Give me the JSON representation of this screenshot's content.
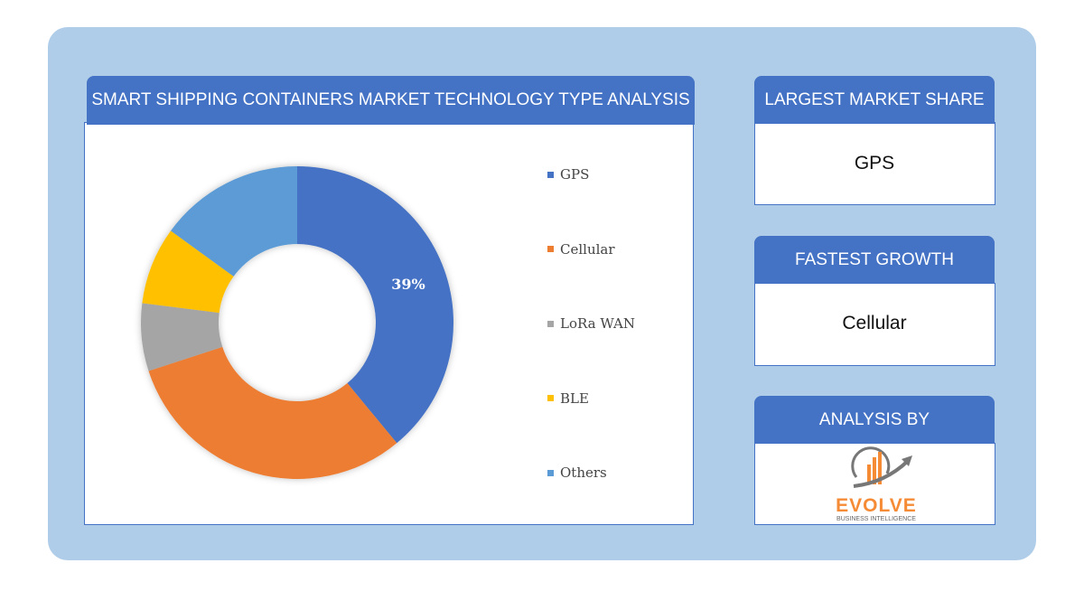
{
  "chart_title": "SMART SHIPPING CONTAINERS MARKET TECHNOLOGY TYPE ANALYSIS",
  "chart_data": {
    "type": "pie",
    "variant": "donut",
    "categories": [
      "GPS",
      "Cellular",
      "LoRa WAN",
      "BLE",
      "Others"
    ],
    "values": [
      39,
      31,
      7,
      8,
      15
    ],
    "colors": [
      "#4472c4",
      "#ed7d31",
      "#a5a5a5",
      "#ffc000",
      "#5b9bd5"
    ],
    "data_labels": [
      "39%",
      "",
      "",
      "",
      ""
    ],
    "legend_position": "right"
  },
  "cards": {
    "largest": {
      "title": "LARGEST MARKET SHARE",
      "value": "GPS"
    },
    "fastest": {
      "title": "FASTEST GROWTH",
      "value": "Cellular"
    },
    "analysis": {
      "title": "ANALYSIS BY",
      "logo_name": "EVOLVE",
      "logo_tagline": "BUSINESS INTELLIGENCE"
    }
  }
}
